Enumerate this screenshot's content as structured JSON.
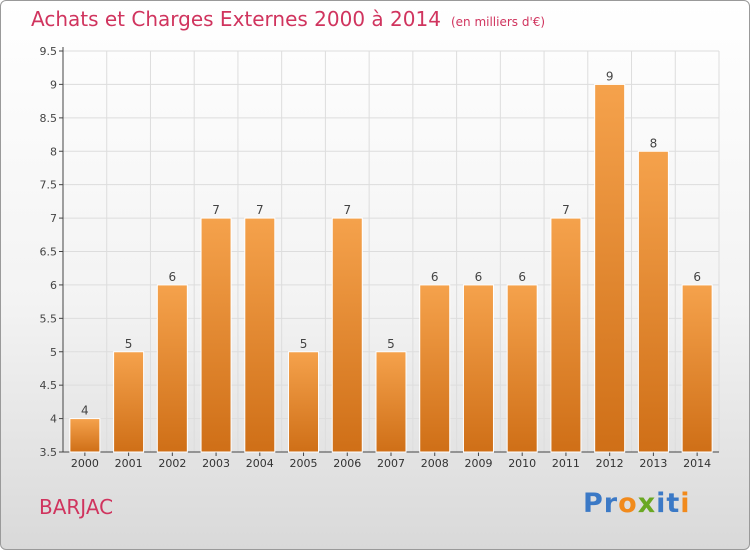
{
  "title": "Achats et Charges Externes 2000 à 2014",
  "unit": "(en milliers d'€)",
  "commune": "BARJAC",
  "logo": {
    "text": "Proxiti",
    "letters": [
      "P",
      "r",
      "o",
      "x",
      "i",
      "t",
      "i"
    ],
    "colors": [
      "#3b79c6",
      "#3b79c6",
      "#f18a1c",
      "#6aa823",
      "#3b79c6",
      "#3b79c6",
      "#f18a1c"
    ]
  },
  "colors": {
    "bar_top": "#f5a24c",
    "bar_bottom": "#cf6f17",
    "title": "#d0345e",
    "grid": "#dddddd"
  },
  "chart_data": {
    "type": "bar",
    "title": "Achats et Charges Externes 2000 à 2014",
    "subtitle": "(en milliers d'€)",
    "categories": [
      "2000",
      "2001",
      "2002",
      "2003",
      "2004",
      "2005",
      "2006",
      "2007",
      "2008",
      "2009",
      "2010",
      "2011",
      "2012",
      "2013",
      "2014"
    ],
    "values": [
      4,
      5,
      6,
      7,
      7,
      5,
      7,
      5,
      6,
      6,
      6,
      7,
      9,
      8,
      6
    ],
    "data_labels": [
      "4",
      "5",
      "6",
      "7",
      "7",
      "5",
      "7",
      "5",
      "6",
      "6",
      "6",
      "7",
      "9",
      "8",
      "6"
    ],
    "ylim": [
      3.5,
      9.5
    ],
    "yticks": [
      3.5,
      4,
      4.5,
      5,
      5.5,
      6,
      6.5,
      7,
      7.5,
      8,
      8.5,
      9,
      9.5
    ],
    "ytick_labels": [
      "3.5",
      "4",
      "4.5",
      "5",
      "5.5",
      "6",
      "6.5",
      "7",
      "7.5",
      "8",
      "8.5",
      "9",
      "9.5"
    ],
    "grid": true,
    "legend": "none"
  }
}
